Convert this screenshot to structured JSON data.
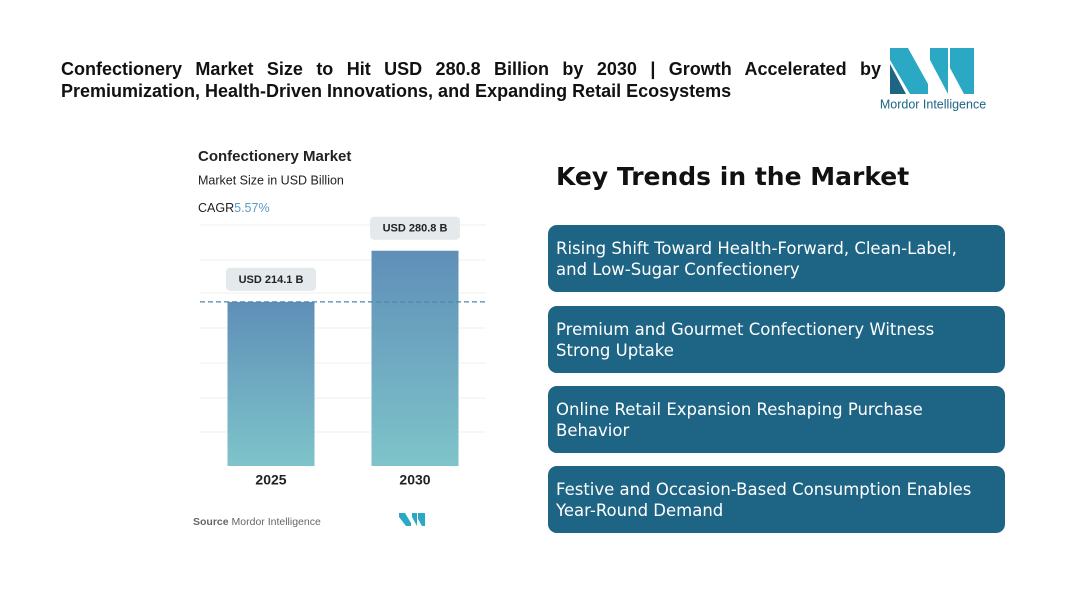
{
  "header": {
    "title": "Confectionery Market Size to Hit USD 280.8 Billion by 2030 | Growth Accelerated by Premiumization, Health-Driven Innovations, and Expanding Retail Ecosystems",
    "logo_text": "Mordor Intelligence"
  },
  "chart_data": {
    "type": "bar",
    "title": "Confectionery Market",
    "subtitle": "Market Size in USD Billion",
    "cagr_label": "CAGR",
    "cagr_value": "5.57%",
    "categories": [
      "2025",
      "2030"
    ],
    "values": [
      214.1,
      280.8
    ],
    "value_labels": [
      "USD 214.1 B",
      "USD 280.8 B"
    ],
    "ylim": [
      0,
      300
    ],
    "source_label": "Source",
    "source": "Mordor Intelligence"
  },
  "trends": {
    "title": "Key Trends in the Market",
    "items": [
      "Rising Shift Toward Health-Forward, Clean-Label, and Low-Sugar Confectionery",
      "Premium and Gourmet Confectionery Witness Strong Uptake",
      "Online Retail Expansion Reshaping Purchase Behavior",
      "Festive and Occasion-Based Consumption Enables Year-Round Demand"
    ]
  }
}
